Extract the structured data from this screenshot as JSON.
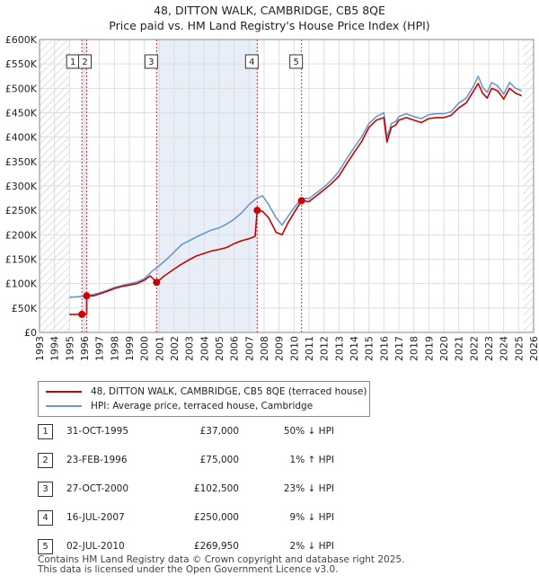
{
  "title_line1": "48, DITTON WALK, CAMBRIDGE, CB5 8QE",
  "title_line2": "Price paid vs. HM Land Registry's House Price Index (HPI)",
  "colors": {
    "price_paid": "#cc0000",
    "hpi": "#6699cc",
    "highlight": "#e8eef8",
    "hatch": "#c8c8c8",
    "grid": "#dddddd",
    "marker_line": "#cc3333"
  },
  "legend": [
    {
      "label": "48, DITTON WALK, CAMBRIDGE, CB5 8QE (terraced house)",
      "color": "#cc0000"
    },
    {
      "label": "HPI: Average price, terraced house, Cambridge",
      "color": "#6699cc"
    }
  ],
  "sales": [
    {
      "num": "1",
      "date": "31-OCT-1995",
      "price": "£37,000",
      "hpi": "50% ↓ HPI"
    },
    {
      "num": "2",
      "date": "23-FEB-1996",
      "price": "£75,000",
      "hpi": "1% ↑ HPI"
    },
    {
      "num": "3",
      "date": "27-OCT-2000",
      "price": "£102,500",
      "hpi": "23% ↓ HPI"
    },
    {
      "num": "4",
      "date": "16-JUL-2007",
      "price": "£250,000",
      "hpi": "9% ↓ HPI"
    },
    {
      "num": "5",
      "date": "02-JUL-2010",
      "price": "£269,950",
      "hpi": "2% ↓ HPI"
    }
  ],
  "footer_line1": "Contains HM Land Registry data © Crown copyright and database right 2025.",
  "footer_line2": "This data is licensed under the Open Government Licence v3.0.",
  "chart_data": {
    "type": "line",
    "title": "Price paid vs. HM Land Registry's House Price Index (HPI)",
    "xlabel": "",
    "ylabel": "",
    "xlim": [
      1993,
      2026
    ],
    "ylim": [
      0,
      600000
    ],
    "x_ticks": [
      1993,
      1994,
      1995,
      1996,
      1997,
      1998,
      1999,
      2000,
      2001,
      2002,
      2003,
      2004,
      2005,
      2006,
      2007,
      2008,
      2009,
      2010,
      2011,
      2012,
      2013,
      2014,
      2015,
      2016,
      2017,
      2018,
      2019,
      2020,
      2021,
      2022,
      2023,
      2024,
      2025,
      2026
    ],
    "y_ticks": [
      0,
      50000,
      100000,
      150000,
      200000,
      250000,
      300000,
      350000,
      400000,
      450000,
      500000,
      550000,
      600000
    ],
    "y_tick_labels": [
      "£0",
      "£50K",
      "£100K",
      "£150K",
      "£200K",
      "£250K",
      "£300K",
      "£350K",
      "£400K",
      "£450K",
      "£500K",
      "£550K",
      "£600K"
    ],
    "hatched_before": 1995.0,
    "hatched_after": 2025.3,
    "sale_markers": [
      {
        "label": "1",
        "x": 1995.83,
        "y": 37000
      },
      {
        "label": "2",
        "x": 1996.15,
        "y": 75000
      },
      {
        "label": "3",
        "x": 2000.82,
        "y": 102500
      },
      {
        "label": "4",
        "x": 2007.54,
        "y": 250000
      },
      {
        "label": "5",
        "x": 2010.5,
        "y": 269950
      }
    ],
    "highlight_spans": [
      [
        1995.83,
        1996.15
      ],
      [
        2000.82,
        2007.54
      ]
    ],
    "series": [
      {
        "name": "48, DITTON WALK, CAMBRIDGE, CB5 8QE (terraced house)",
        "x": [
          1995.0,
          1995.83,
          1995.83,
          1996.15,
          1996.15,
          1996.6,
          1997.0,
          1997.5,
          1998.0,
          1998.5,
          1999.0,
          1999.5,
          2000.0,
          2000.4,
          2000.82,
          2000.82,
          2001.3,
          2002.0,
          2002.5,
          2003.0,
          2003.5,
          2004.0,
          2004.5,
          2005.0,
          2005.5,
          2006.0,
          2006.5,
          2007.0,
          2007.4,
          2007.54,
          2007.54,
          2007.9,
          2008.3,
          2008.8,
          2009.2,
          2009.6,
          2010.0,
          2010.5,
          2010.5,
          2011.0,
          2011.5,
          2012.0,
          2012.5,
          2013.0,
          2013.5,
          2014.0,
          2014.5,
          2015.0,
          2015.5,
          2016.0,
          2016.2,
          2016.5,
          2016.8,
          2017.0,
          2017.5,
          2018.0,
          2018.5,
          2019.0,
          2019.5,
          2020.0,
          2020.5,
          2021.0,
          2021.5,
          2022.0,
          2022.3,
          2022.6,
          2022.9,
          2023.2,
          2023.6,
          2024.0,
          2024.4,
          2024.8,
          2025.2
        ],
        "values": [
          37000,
          37000,
          37000,
          37000,
          75000,
          75000,
          79000,
          84000,
          90000,
          94000,
          97000,
          100000,
          107000,
          116000,
          102500,
          102500,
          115000,
          130000,
          140000,
          149000,
          157000,
          162000,
          167000,
          170000,
          174000,
          182000,
          188000,
          192000,
          197000,
          250000,
          250000,
          248000,
          235000,
          205000,
          200000,
          225000,
          245000,
          269950,
          269950,
          268000,
          280000,
          292000,
          305000,
          320000,
          345000,
          368000,
          390000,
          420000,
          435000,
          440000,
          390000,
          420000,
          425000,
          435000,
          440000,
          435000,
          430000,
          438000,
          440000,
          440000,
          445000,
          460000,
          470000,
          495000,
          510000,
          490000,
          480000,
          500000,
          495000,
          478000,
          500000,
          490000,
          485000
        ]
      },
      {
        "name": "HPI: Average price, terraced house, Cambridge",
        "x": [
          1995.0,
          1995.5,
          1996.0,
          1996.5,
          1997.0,
          1997.5,
          1998.0,
          1998.5,
          1999.0,
          1999.5,
          2000.0,
          2000.5,
          2001.0,
          2001.5,
          2002.0,
          2002.5,
          2003.0,
          2003.5,
          2004.0,
          2004.5,
          2005.0,
          2005.5,
          2006.0,
          2006.5,
          2007.0,
          2007.5,
          2007.9,
          2008.3,
          2008.8,
          2009.2,
          2009.6,
          2010.0,
          2010.5,
          2011.0,
          2011.5,
          2012.0,
          2012.5,
          2013.0,
          2013.5,
          2014.0,
          2014.5,
          2015.0,
          2015.5,
          2016.0,
          2016.2,
          2016.5,
          2016.8,
          2017.0,
          2017.5,
          2018.0,
          2018.5,
          2019.0,
          2019.5,
          2020.0,
          2020.5,
          2021.0,
          2021.5,
          2022.0,
          2022.3,
          2022.6,
          2022.9,
          2023.2,
          2023.6,
          2024.0,
          2024.4,
          2024.8,
          2025.2
        ],
        "values": [
          72000,
          73000,
          74000,
          77000,
          81000,
          86000,
          92000,
          96000,
          100000,
          103000,
          110000,
          125000,
          137000,
          150000,
          165000,
          180000,
          188000,
          196000,
          203000,
          210000,
          214000,
          222000,
          232000,
          245000,
          262000,
          275000,
          280000,
          262000,
          235000,
          220000,
          238000,
          255000,
          275000,
          274000,
          286000,
          298000,
          312000,
          330000,
          355000,
          378000,
          400000,
          428000,
          442000,
          450000,
          400000,
          428000,
          432000,
          442000,
          448000,
          442000,
          438000,
          446000,
          448000,
          448000,
          452000,
          470000,
          480000,
          505000,
          525000,
          502000,
          492000,
          512000,
          505000,
          488000,
          512000,
          500000,
          495000
        ]
      }
    ]
  }
}
